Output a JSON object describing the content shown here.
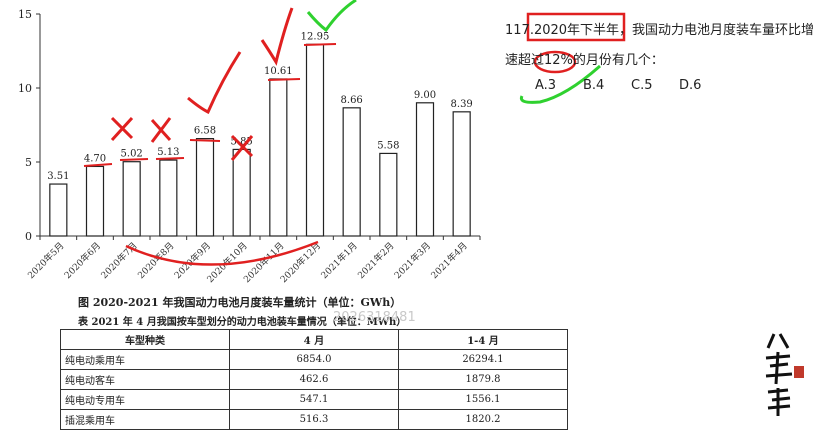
{
  "question": {
    "text": "117.2020年下半年，我国动力电池月度装车量环比增速超过12%的月份有几个：",
    "options": [
      "A.3",
      "B.4",
      "C.5",
      "D.6"
    ]
  },
  "chart_data": {
    "type": "bar",
    "title": "图 2020-2021 年我国动力电池月度装车量统计（单位：GWh）",
    "categories": [
      "2020年5月",
      "2020年6月",
      "2020年7月",
      "2020年8月",
      "2020年9月",
      "2020年10月",
      "2020年11月",
      "2020年12月",
      "2021年1月",
      "2021年2月",
      "2021年3月",
      "2021年4月"
    ],
    "values": [
      3.51,
      4.7,
      5.02,
      5.13,
      6.58,
      5.85,
      10.61,
      12.95,
      8.66,
      5.58,
      9.0,
      8.39
    ],
    "value_labels": [
      "3.51",
      "4.70",
      "5.02",
      "5.13",
      "6.58",
      "5.85",
      "10.61",
      "12.95",
      "8.66",
      "5.58",
      "9.00",
      "8.39"
    ],
    "ylim": [
      0,
      15
    ],
    "yticks": [
      "0",
      "5",
      "10",
      "15"
    ],
    "grid": false
  },
  "table": {
    "title": "表 2021 年 4 月我国按车型划分的动力电池装车量情况（单位：MWh）",
    "headers": [
      "车型种类",
      "4 月",
      "1-4 月"
    ],
    "rows": [
      [
        "纯电动乘用车",
        "6854.0",
        "26294.1"
      ],
      [
        "纯电动客车",
        "462.6",
        "1879.8"
      ],
      [
        "纯电动专用车",
        "547.1",
        "1556.1"
      ],
      [
        "插混乘用车",
        "516.3",
        "1820.2"
      ]
    ]
  },
  "watermark": "2026318481",
  "logo_text": "八考思维",
  "colors": {
    "annotation_red": "#e02020",
    "annotation_green": "#2fd12f",
    "bar_outline": "#222222"
  }
}
